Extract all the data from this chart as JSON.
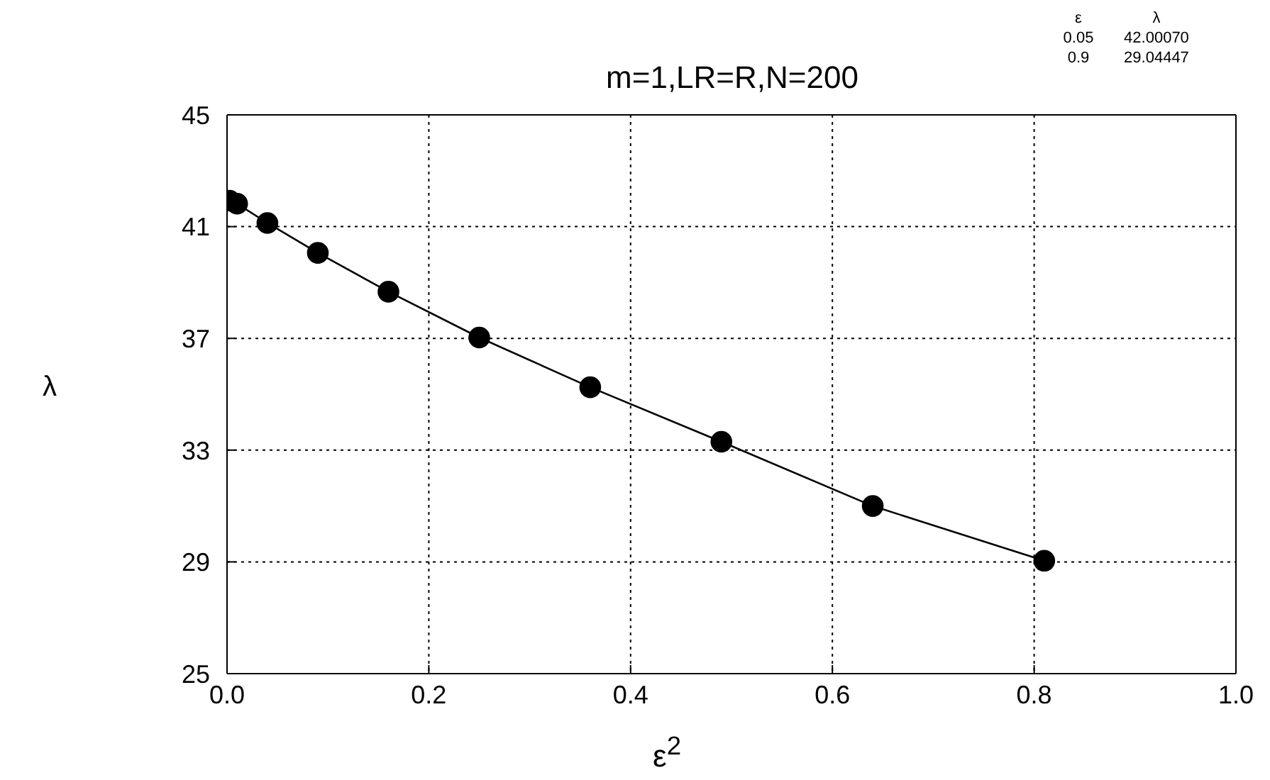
{
  "chart_data": {
    "type": "line",
    "title": "m=1,LR=R,N=200",
    "xlabel": "ε$^{2}$",
    "ylabel": "λ",
    "annotations": [
      "ε",
      "λ",
      "0.05",
      "42.00070",
      "0.9",
      "29.04447"
    ],
    "x": [
      0.0025,
      0.01,
      0.04,
      0.09,
      0.16,
      0.25,
      0.36,
      0.49,
      0.64,
      0.81
    ],
    "series": [
      {
        "color": "#000000",
        "values": [
          41.93,
          41.82,
          41.13,
          40.06,
          38.67,
          37.03,
          35.25,
          33.3,
          31.0,
          29.04
        ]
      }
    ],
    "xlim": [
      0,
      1
    ],
    "xticks": [
      {
        "value": 0,
        "label": "0.0"
      },
      {
        "value": 0.2,
        "label": "0.2"
      },
      {
        "value": 0.4,
        "label": "0.4"
      },
      {
        "value": 0.6,
        "label": "0.6"
      },
      {
        "value": 0.8,
        "label": "0.8"
      },
      {
        "value": 1,
        "label": "1.0"
      }
    ],
    "ylim": [
      25,
      45
    ],
    "yticks": [
      25,
      29,
      33,
      37,
      41,
      45
    ],
    "grid": true,
    "marker": "circle",
    "line_style": "solid"
  }
}
